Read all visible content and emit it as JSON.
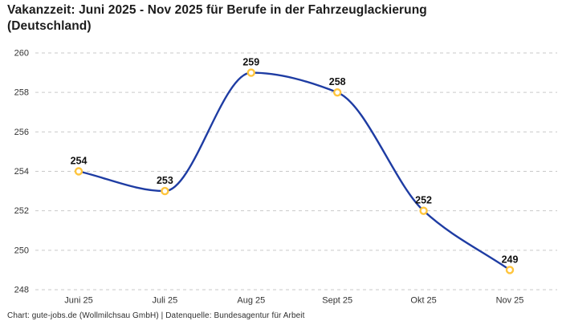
{
  "header": {
    "title": "Vakanzzeit: Juni 2025 - Nov 2025 für Berufe in der Fahrzeuglackierung (Deutschland)"
  },
  "chart_data": {
    "type": "line",
    "categories": [
      "Juni 25",
      "Juli 25",
      "Aug 25",
      "Sept 25",
      "Okt 25",
      "Nov 25"
    ],
    "values": [
      254,
      253,
      259,
      258,
      252,
      249
    ],
    "title": "Vakanzzeit: Juni 2025 - Nov 2025 für Berufe in der Fahrzeuglackierung (Deutschland)",
    "xlabel": "",
    "ylabel": "",
    "ylim": [
      248,
      260
    ],
    "yticks": [
      248,
      250,
      252,
      254,
      256,
      258,
      260
    ],
    "grid": "horizontal-dashed",
    "legend": "none",
    "curve": "smooth-monotone",
    "colors": {
      "line": "#1e3ca3",
      "marker_ring": "#ffc53d",
      "marker_fill": "#ffffff",
      "gridline": "#c9c9c9",
      "tick_text": "#333333",
      "data_label": "#111111"
    }
  },
  "footer": {
    "credit": "Chart: gute-jobs.de (Wollmilchsau GmbH) | Datenquelle: Bundesagentur für Arbeit"
  }
}
